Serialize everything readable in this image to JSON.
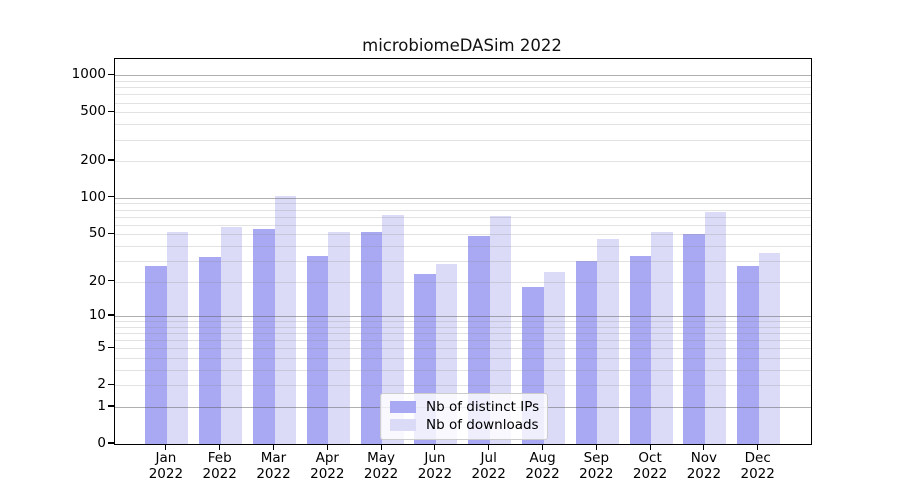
{
  "chart_data": {
    "type": "bar",
    "title": "microbiomeDASim 2022",
    "categories": [
      "Jan",
      "Feb",
      "Mar",
      "Apr",
      "May",
      "Jun",
      "Jul",
      "Aug",
      "Sep",
      "Oct",
      "Nov",
      "Dec"
    ],
    "x_year_label": "2022",
    "series": [
      {
        "name": "Nb of distinct IPs",
        "color": "#a9a9f3",
        "values": [
          27,
          32,
          55,
          33,
          52,
          23,
          48,
          18,
          30,
          33,
          50,
          27
        ]
      },
      {
        "name": "Nb of downloads",
        "color": "#dbdbf7",
        "values": [
          52,
          57,
          104,
          52,
          72,
          28,
          71,
          24,
          46,
          52,
          76,
          35
        ]
      }
    ],
    "xlabel": "",
    "ylabel": "",
    "y_scale": "log1p",
    "ylim": [
      0,
      1360
    ],
    "y_tick_labels": [
      "0",
      "1",
      "2",
      "5",
      "10",
      "20",
      "50",
      "100",
      "200",
      "500",
      "1000"
    ],
    "y_tick_values": [
      0,
      1,
      2,
      5,
      10,
      20,
      50,
      100,
      200,
      500,
      1000
    ],
    "grid": {
      "major_values": [
        1,
        10,
        100,
        1000
      ],
      "minor_multipliers": [
        2,
        3,
        4,
        5,
        6,
        7,
        8,
        9
      ],
      "grid_on": true,
      "grid_above_bars": true
    },
    "legend_position": "lower center"
  }
}
